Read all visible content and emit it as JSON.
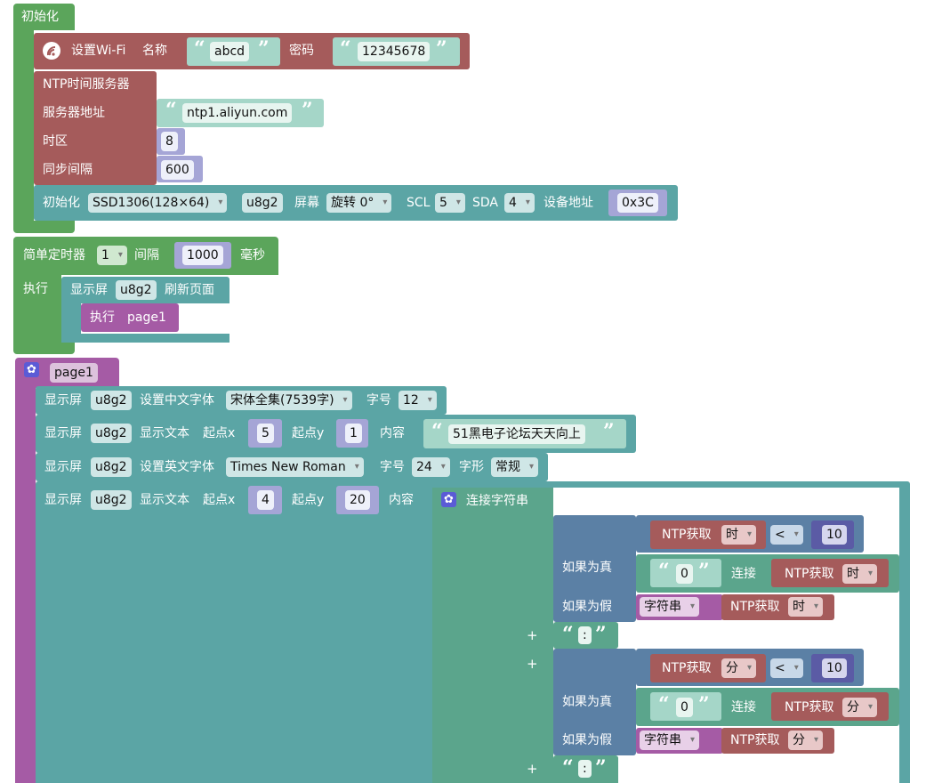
{
  "colors": {
    "green": "#5ba55b",
    "red": "#a55b5b",
    "teal": "#5ba5a5",
    "purple": "#a55ba5",
    "blue": "#5b80a5",
    "mint": "#5ba58c",
    "white_field": "#ffffff"
  },
  "init": {
    "title": "初始化",
    "wifi": {
      "label": "设置Wi-Fi",
      "name_label": "名称",
      "ssid": "abcd",
      "password_label": "密码",
      "password": "12345678",
      "icon": "wifi-icon"
    },
    "ntp": {
      "title": "NTP时间服务器",
      "server_label": "服务器地址",
      "server": "ntp1.aliyun.com",
      "tz_label": "时区",
      "tz": "8",
      "interval_label": "同步间隔",
      "interval": "600"
    },
    "oled": {
      "label": "初始化",
      "model": "SSD1306(128×64)",
      "name": "u8g2",
      "rotate_label": "屏幕",
      "rotate": "旋转 0°",
      "scl_label": "SCL",
      "scl": "5",
      "sda_label": "SDA",
      "sda": "4",
      "addr_label": "设备地址",
      "addr": "0x3C"
    }
  },
  "timer": {
    "label": "简单定时器",
    "id": "1",
    "interval_label": "间隔",
    "interval": "1000",
    "unit": "毫秒",
    "exec_label": "执行",
    "refresh": {
      "label": "显示屏",
      "name": "u8g2",
      "action": "刷新页面"
    },
    "call": {
      "label": "执行",
      "target": "page1"
    }
  },
  "page1": {
    "title": "page1",
    "s1": {
      "label": "显示屏",
      "name": "u8g2",
      "action": "设置中文字体",
      "font": "宋体全集(7539字)",
      "size_label": "字号",
      "size": "12"
    },
    "s2": {
      "label": "显示屏",
      "name": "u8g2",
      "action": "显示文本",
      "x_label": "起点x",
      "x": "5",
      "y_label": "起点y",
      "y": "1",
      "content_label": "内容",
      "content": "51黑电子论坛天天向上"
    },
    "s3": {
      "label": "显示屏",
      "name": "u8g2",
      "action": "设置英文字体",
      "font": "Times New Roman",
      "size_label": "字号",
      "size": "24",
      "style_label": "字形",
      "style": "常规"
    },
    "s4": {
      "label": "显示屏",
      "name": "u8g2",
      "action": "显示文本",
      "x_label": "起点x",
      "x": "4",
      "y_label": "起点y",
      "y": "20",
      "content_label": "内容",
      "concat": {
        "label": "连接字符串",
        "plus": "+",
        "t1": {
          "ntp": "NTP获取",
          "unit": "时",
          "op": "<",
          "num": "10",
          "if_true": "如果为真",
          "zero": "0",
          "join": "连接",
          "if_false": "如果为假",
          "string": "字符串"
        },
        "colon": ":",
        "t2": {
          "ntp": "NTP获取",
          "unit": "分",
          "op": "<",
          "num": "10",
          "if_true": "如果为真",
          "zero": "0",
          "join": "连接",
          "if_false": "如果为假",
          "string": "字符串"
        }
      }
    }
  }
}
